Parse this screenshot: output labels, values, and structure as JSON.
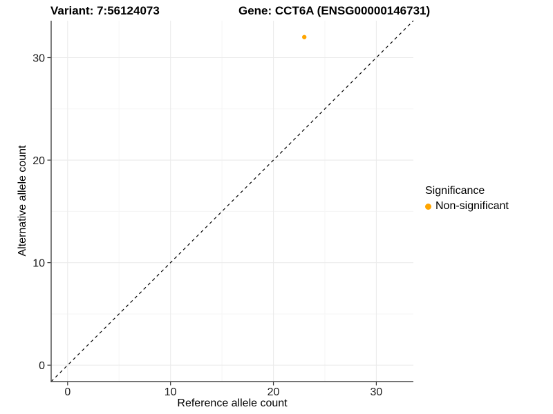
{
  "chart_data": {
    "type": "scatter",
    "titles": {
      "left": "Variant: 7:56124073",
      "right": "Gene: CCT6A (ENSG00000146731)"
    },
    "xlabel": "Reference allele count",
    "ylabel": "Alternative allele count",
    "xlim": [
      -1.6,
      33.6
    ],
    "ylim": [
      -1.6,
      33.6
    ],
    "xticks": [
      0,
      10,
      20,
      30
    ],
    "yticks": [
      0,
      10,
      20,
      30
    ],
    "minor_xticks": [
      5,
      15,
      25
    ],
    "minor_yticks": [
      5,
      15,
      25
    ],
    "grid": "major+minor",
    "reference_line": {
      "kind": "identity y=x",
      "style": "dashed",
      "color": "#000000"
    },
    "series": [
      {
        "name": "Non-significant",
        "marker": "circle",
        "color": "#FFA500",
        "points": [
          {
            "x": 23,
            "y": 32
          }
        ]
      }
    ],
    "legend": {
      "title": "Significance",
      "position": "right",
      "items": [
        {
          "label": "Non-significant",
          "color": "#FFA500"
        }
      ]
    },
    "colors": {
      "background": "#FFFFFF",
      "point": "#FFA500",
      "axis_line": "#464646",
      "tick_mark": "#333333",
      "tick_label": "#1A1A1A",
      "grid_major": "#EBEBEB",
      "grid_minor": "#F5F5F5"
    }
  }
}
